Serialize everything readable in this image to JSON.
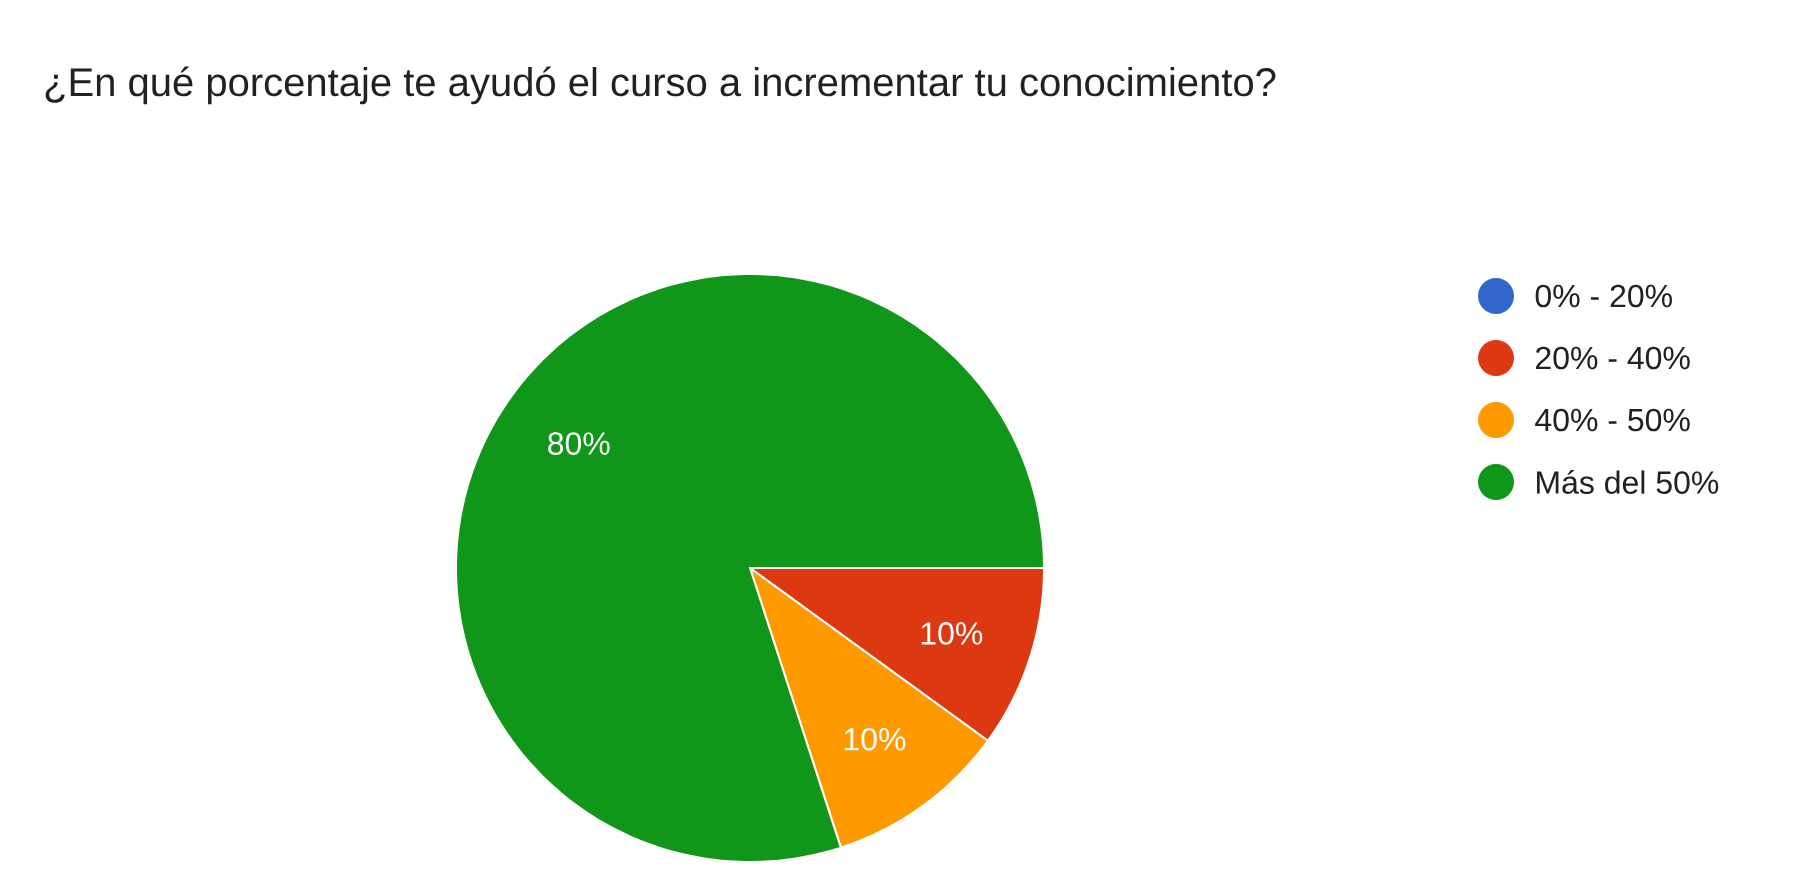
{
  "chart_data": {
    "type": "pie",
    "title": "¿En qué porcentaje te ayudó el curso a incrementar tu conocimiento?",
    "categories": [
      "0% - 20%",
      "20% - 40%",
      "40% - 50%",
      "Más del 50%"
    ],
    "values": [
      0,
      10,
      10,
      80
    ],
    "colors": [
      "#3366cc",
      "#dc3912",
      "#ff9900",
      "#109618"
    ],
    "value_labels": [
      null,
      "10%",
      "10%",
      "80%"
    ],
    "legend": "right"
  }
}
